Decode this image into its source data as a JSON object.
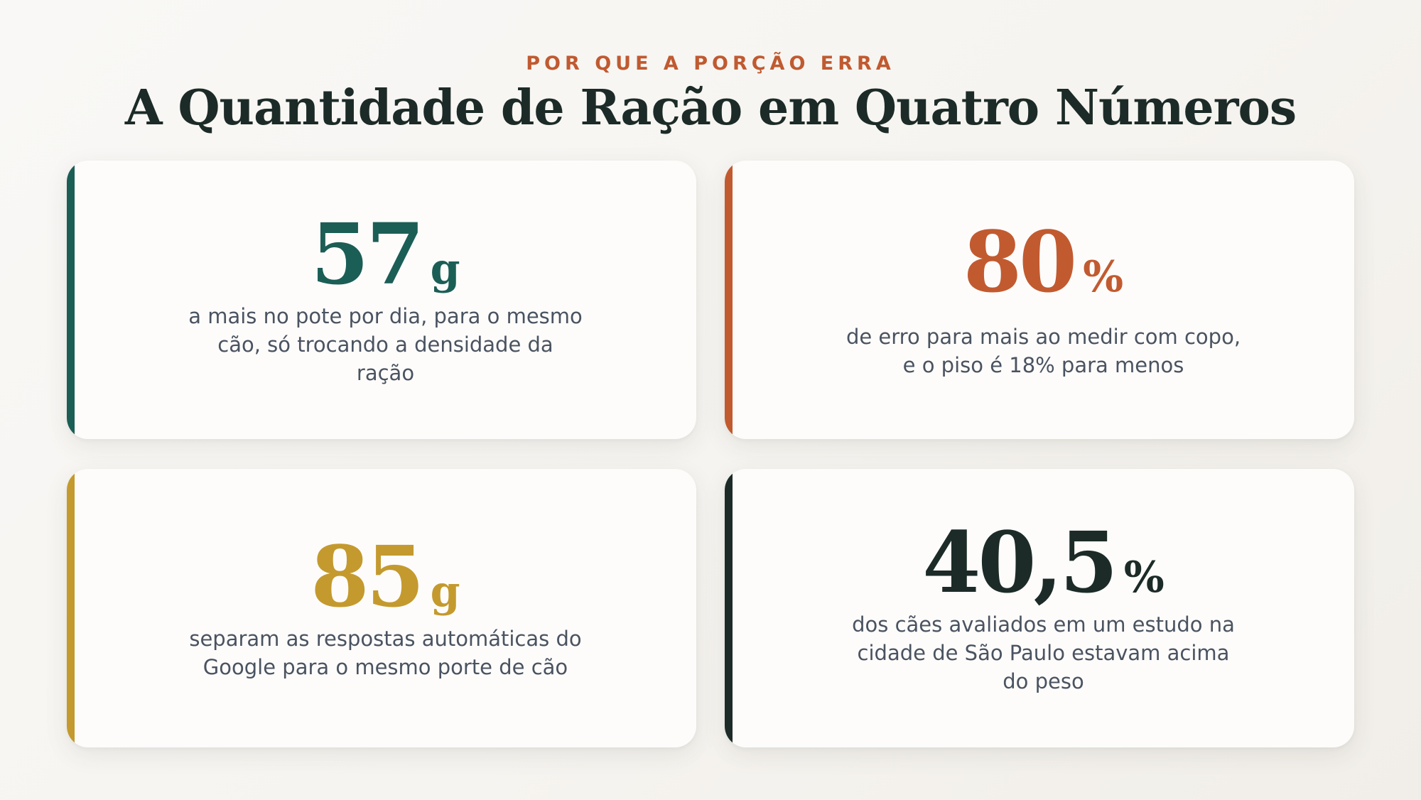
{
  "header": {
    "eyebrow": "POR QUE A PORÇÃO ERRA",
    "title": "A Quantidade de Ração em Quatro Números"
  },
  "cards": [
    {
      "value": "57",
      "unit": "g",
      "description": "a mais no pote por dia, para o mesmo cão, só trocando a densidade da ração",
      "color": "#1b5e56"
    },
    {
      "value": "80",
      "unit": "%",
      "description": "de erro para mais ao medir com copo, e o piso é 18% para menos",
      "color": "#c25a30"
    },
    {
      "value": "85",
      "unit": "g",
      "description": "separam as respostas automáticas do Google para o mesmo porte de cão",
      "color": "#c49a2e"
    },
    {
      "value": "40,5",
      "unit": "%",
      "description": "dos cães avaliados em um estudo na cidade de São Paulo estavam acima do peso",
      "color": "#1c2b27"
    }
  ]
}
